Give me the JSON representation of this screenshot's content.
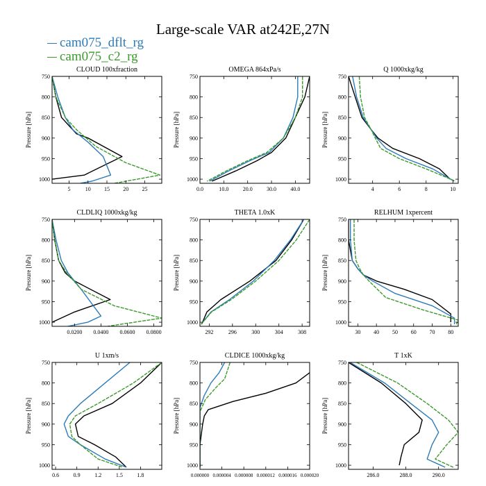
{
  "title": "Large-scale VAR at242E,27N",
  "legend": [
    {
      "name": "cam075_dflt_rg",
      "color": "#2b7bba"
    },
    {
      "name": "cam075_c2_rg",
      "color": "#3a9a2a"
    }
  ],
  "reference_color": "#000000",
  "chart_data": [
    {
      "type": "line",
      "title": "CLOUD  100xfraction",
      "ylabel": "Pressure [hPa]",
      "xlim": [
        0.5,
        29.5
      ],
      "ylim": [
        750,
        1010
      ],
      "y_inverted": true,
      "xticks": [
        5,
        10,
        15,
        20,
        25
      ],
      "xtick_labels": [
        "5",
        "10",
        "15",
        "20",
        "25"
      ],
      "yticks": [
        750,
        800,
        850,
        900,
        950,
        1000
      ],
      "series": [
        {
          "role": "reference",
          "x": [
            0.5,
            1.5,
            3,
            5,
            7,
            10,
            19,
            9,
            0.5
          ],
          "y": [
            750,
            800,
            850,
            870,
            890,
            900,
            945,
            990,
            1000
          ]
        },
        {
          "role": "dflt",
          "x": [
            0.5,
            2,
            4,
            6,
            10,
            14,
            16,
            11,
            8
          ],
          "y": [
            750,
            800,
            850,
            880,
            910,
            945,
            990,
            1005,
            1010
          ]
        },
        {
          "role": "c2",
          "x": [
            0.5,
            1.5,
            4,
            7,
            12,
            20,
            29,
            20,
            17
          ],
          "y": [
            750,
            800,
            850,
            880,
            920,
            960,
            990,
            1005,
            1010
          ]
        }
      ]
    },
    {
      "type": "line",
      "title": "OMEGA  864xPa/s",
      "ylabel": "Pressure [hPa]",
      "xlim": [
        0,
        46
      ],
      "ylim": [
        750,
        1010
      ],
      "y_inverted": true,
      "xticks": [
        0,
        10,
        20,
        30,
        40
      ],
      "xtick_labels": [
        "0.0",
        "10.0",
        "20.0",
        "30.0",
        "40.0"
      ],
      "yticks": [
        750,
        800,
        850,
        900,
        950,
        1000
      ],
      "series": [
        {
          "role": "reference",
          "x": [
            46,
            44,
            40,
            36,
            30,
            24,
            15,
            5
          ],
          "y": [
            750,
            800,
            850,
            900,
            935,
            955,
            980,
            1005
          ]
        },
        {
          "role": "dflt",
          "x": [
            41,
            41,
            39,
            35,
            29,
            21,
            12,
            4
          ],
          "y": [
            750,
            800,
            850,
            900,
            935,
            955,
            980,
            1005
          ]
        },
        {
          "role": "c2",
          "x": [
            43,
            43,
            40,
            35,
            28,
            20,
            11,
            3
          ],
          "y": [
            750,
            800,
            850,
            900,
            935,
            955,
            980,
            1005
          ]
        }
      ]
    },
    {
      "type": "line",
      "title": "Q  1000xkg/kg",
      "ylabel": "Pressure [hPa]",
      "xlim": [
        2.2,
        10.4
      ],
      "ylim": [
        750,
        1010
      ],
      "y_inverted": true,
      "xticks": [
        4,
        6,
        8,
        10
      ],
      "xtick_labels": [
        "4",
        "6",
        "8",
        "10"
      ],
      "yticks": [
        750,
        800,
        850,
        900,
        950,
        1000
      ],
      "series": [
        {
          "role": "reference",
          "x": [
            2.2,
            2.7,
            3.2,
            3.9,
            4.4,
            5.5,
            7.5,
            9.0,
            9.8
          ],
          "y": [
            750,
            800,
            850,
            880,
            900,
            925,
            950,
            975,
            1000
          ]
        },
        {
          "role": "dflt",
          "x": [
            2.5,
            2.8,
            3.3,
            3.9,
            4.3,
            5.0,
            6.5,
            8.5,
            10.1
          ],
          "y": [
            750,
            800,
            850,
            880,
            900,
            925,
            950,
            975,
            1005
          ]
        },
        {
          "role": "c2",
          "x": [
            3.0,
            3.1,
            3.4,
            3.9,
            4.2,
            4.6,
            6.0,
            8.0,
            10.2
          ],
          "y": [
            750,
            800,
            850,
            880,
            900,
            925,
            950,
            975,
            1005
          ]
        }
      ]
    },
    {
      "type": "line",
      "title": "CLDLIQ  1000xkg/kg",
      "ylabel": "Pressure [hPa]",
      "xlim": [
        0.003,
        0.086
      ],
      "ylim": [
        750,
        1010
      ],
      "y_inverted": true,
      "xticks": [
        0.02,
        0.04,
        0.06,
        0.08
      ],
      "xtick_labels": [
        "0.0200",
        "0.0400",
        "0.0600",
        "0.0800"
      ],
      "yticks": [
        750,
        800,
        850,
        900,
        950,
        1000
      ],
      "series": [
        {
          "role": "reference",
          "x": [
            0.003,
            0.005,
            0.008,
            0.013,
            0.02,
            0.047,
            0.02,
            0.003
          ],
          "y": [
            750,
            800,
            850,
            880,
            900,
            945,
            975,
            1000
          ]
        },
        {
          "role": "dflt",
          "x": [
            0.003,
            0.006,
            0.01,
            0.015,
            0.025,
            0.04,
            0.03,
            0.015
          ],
          "y": [
            750,
            800,
            850,
            880,
            920,
            985,
            1000,
            1010
          ]
        },
        {
          "role": "c2",
          "x": [
            0.003,
            0.005,
            0.008,
            0.014,
            0.025,
            0.05,
            0.086,
            0.055,
            0.045
          ],
          "y": [
            750,
            800,
            850,
            880,
            920,
            960,
            990,
            1005,
            1010
          ]
        }
      ]
    },
    {
      "type": "line",
      "title": "THETA  1.0xK",
      "ylabel": "Pressure [hPa]",
      "xlim": [
        290.4,
        309.3
      ],
      "ylim": [
        750,
        1010
      ],
      "y_inverted": true,
      "xticks": [
        292,
        296,
        300,
        304,
        308
      ],
      "xtick_labels": [
        "292",
        "296",
        "300",
        "304",
        "308"
      ],
      "yticks": [
        750,
        800,
        850,
        900,
        950,
        1000
      ],
      "series": [
        {
          "role": "reference",
          "x": [
            308.3,
            306.2,
            303.5,
            299.0,
            294.0,
            291.6,
            290.7
          ],
          "y": [
            750,
            800,
            850,
            900,
            945,
            975,
            1005
          ]
        },
        {
          "role": "dflt",
          "x": [
            308.3,
            306.0,
            303.2,
            299.6,
            295.5,
            292.3,
            290.6
          ],
          "y": [
            750,
            800,
            850,
            900,
            945,
            975,
            1005
          ]
        },
        {
          "role": "c2",
          "x": [
            309.3,
            307.0,
            304.0,
            300.0,
            295.8,
            292.4,
            290.6
          ],
          "y": [
            750,
            800,
            850,
            900,
            945,
            975,
            1005
          ]
        }
      ]
    },
    {
      "type": "line",
      "title": "RELHUM  1xpercent",
      "ylabel": "Pressure [hPa]",
      "xlim": [
        25,
        84
      ],
      "ylim": [
        750,
        1010
      ],
      "y_inverted": true,
      "xticks": [
        30,
        40,
        50,
        60,
        70,
        80
      ],
      "xtick_labels": [
        "30",
        "40",
        "50",
        "60",
        "70",
        "80"
      ],
      "yticks": [
        750,
        800,
        850,
        900,
        950,
        1000
      ],
      "series": [
        {
          "role": "reference",
          "x": [
            25,
            25,
            27,
            30,
            33,
            40,
            55,
            70,
            80,
            80
          ],
          "y": [
            750,
            800,
            850,
            870,
            885,
            900,
            920,
            945,
            980,
            1000
          ]
        },
        {
          "role": "dflt",
          "x": [
            26,
            26,
            27,
            30,
            33,
            38,
            50,
            70,
            82,
            82
          ],
          "y": [
            750,
            800,
            850,
            870,
            885,
            900,
            930,
            960,
            990,
            1005
          ]
        },
        {
          "role": "c2",
          "x": [
            28,
            28,
            29,
            31,
            33,
            36,
            45,
            65,
            84,
            83
          ],
          "y": [
            750,
            800,
            850,
            870,
            885,
            900,
            940,
            970,
            995,
            1005
          ]
        }
      ]
    },
    {
      "type": "line",
      "title": "U  1xm/s",
      "ylabel": "Pressure [hPa]",
      "xlim": [
        0.55,
        2.1
      ],
      "ylim": [
        750,
        1010
      ],
      "y_inverted": true,
      "xticks": [
        0.6,
        0.9,
        1.2,
        1.5,
        1.8
      ],
      "xtick_labels": [
        "0.6",
        "0.9",
        "1.2",
        "1.5",
        "1.8"
      ],
      "yticks": [
        750,
        800,
        850,
        900,
        950,
        1000
      ],
      "series": [
        {
          "role": "reference",
          "x": [
            2.1,
            1.8,
            1.4,
            1.0,
            0.88,
            0.92,
            1.15,
            1.45,
            1.6
          ],
          "y": [
            750,
            800,
            850,
            880,
            900,
            930,
            950,
            980,
            1005
          ]
        },
        {
          "role": "dflt",
          "x": [
            1.65,
            1.3,
            0.95,
            0.78,
            0.72,
            0.78,
            0.95,
            1.3,
            1.6
          ],
          "y": [
            750,
            800,
            850,
            880,
            900,
            930,
            950,
            985,
            1005
          ]
        },
        {
          "role": "c2",
          "x": [
            2.1,
            1.7,
            1.2,
            0.88,
            0.8,
            0.83,
            0.95,
            1.2,
            1.55
          ],
          "y": [
            750,
            800,
            850,
            880,
            900,
            930,
            950,
            985,
            1005
          ]
        }
      ]
    },
    {
      "type": "line",
      "title": "CLDICE  1000xkg/kg",
      "ylabel": "Pressure [hPa]",
      "xlim": [
        0.0,
        2e-05
      ],
      "ylim": [
        750,
        1010
      ],
      "y_inverted": true,
      "xticks": [
        0.0,
        4e-06,
        8e-06,
        1.2e-05,
        1.6e-05,
        2e-05
      ],
      "xtick_labels": [
        "0.000000",
        "0.000004",
        "0.000008",
        "0.000012",
        "0.000016",
        "0.000020"
      ],
      "yticks": [
        750,
        800,
        850,
        900,
        950,
        1000
      ],
      "series": [
        {
          "role": "reference",
          "x": [
            2e-05,
            1.75e-05,
            1.2e-05,
            6e-06,
            1.5e-06,
            8e-07,
            5e-07,
            0.0,
            0.0
          ],
          "y": [
            775,
            800,
            825,
            845,
            865,
            880,
            900,
            950,
            1005
          ]
        },
        {
          "role": "dflt",
          "x": [
            4.5e-06,
            3.5e-06,
            2e-06,
            8e-07,
            0.0,
            0.0
          ],
          "y": [
            750,
            775,
            800,
            830,
            860,
            1005
          ]
        },
        {
          "role": "c2",
          "x": [
            5.5e-06,
            5e-06,
            4.5e-06,
            3e-06,
            1e-06,
            0.0,
            0.0
          ],
          "y": [
            750,
            770,
            790,
            810,
            840,
            870,
            1005
          ]
        }
      ]
    },
    {
      "type": "line",
      "title": "T  1xK",
      "ylabel": "Pressure [hPa]",
      "xlim": [
        284.5,
        291.2
      ],
      "ylim": [
        750,
        1010
      ],
      "y_inverted": true,
      "xticks": [
        286.0,
        288.0,
        290.0
      ],
      "xtick_labels": [
        "286.0",
        "288.0",
        "290.0"
      ],
      "yticks": [
        750,
        800,
        850,
        900,
        950,
        1000
      ],
      "series": [
        {
          "role": "reference",
          "x": [
            284.5,
            286.5,
            288.0,
            289.0,
            288.8,
            287.9,
            287.7,
            287.6
          ],
          "y": [
            750,
            800,
            850,
            890,
            920,
            950,
            980,
            1000
          ]
        },
        {
          "role": "dflt",
          "x": [
            284.6,
            286.7,
            288.3,
            289.6,
            290.0,
            289.6,
            289.3,
            290.4
          ],
          "y": [
            750,
            800,
            850,
            890,
            920,
            950,
            985,
            1005
          ]
        },
        {
          "role": "c2",
          "x": [
            285.0,
            287.5,
            289.3,
            290.6,
            291.2,
            290.5,
            289.8,
            290.9
          ],
          "y": [
            750,
            800,
            850,
            890,
            920,
            950,
            985,
            1005
          ]
        }
      ]
    }
  ]
}
